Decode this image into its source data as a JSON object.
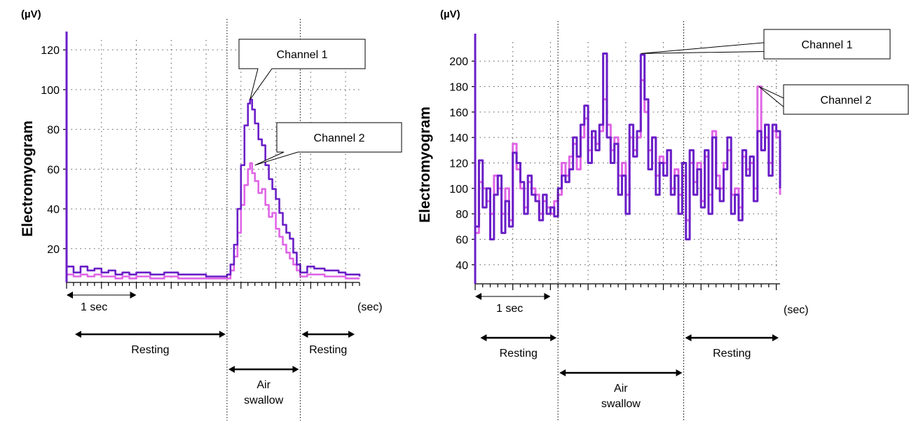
{
  "chart_data": [
    {
      "type": "line",
      "id": "left",
      "y_unit": "(µV)",
      "ylabel": "Electromyogram",
      "x_unit": "(sec)",
      "yticks": [
        "20",
        "40",
        "60",
        "80",
        "100",
        "120"
      ],
      "ylim": [
        3,
        125
      ],
      "xlim": [
        0,
        4.2
      ],
      "grid": true,
      "scale_bar": "1 sec",
      "scale_bar_range": [
        0,
        1
      ],
      "phase_dividers": [
        2.3,
        3.35
      ],
      "phases": [
        {
          "label": "Resting",
          "range": [
            0.1,
            2.3
          ]
        },
        {
          "label": "Air swallow",
          "range": [
            2.3,
            3.35
          ]
        },
        {
          "label": "Resting",
          "range": [
            3.35,
            4.15
          ]
        }
      ],
      "annotations": [
        {
          "text": "Channel 1",
          "series": 0,
          "at": [
            2.63,
            95
          ]
        },
        {
          "text": "Channel 2",
          "series": 1,
          "at": [
            2.7,
            62
          ]
        }
      ],
      "series": [
        {
          "name": "Channel 1",
          "color": "#6a1fc7",
          "x": [
            0,
            0.1,
            0.2,
            0.3,
            0.4,
            0.5,
            0.6,
            0.7,
            0.8,
            0.9,
            1.0,
            1.2,
            1.4,
            1.6,
            1.8,
            2.0,
            2.2,
            2.3,
            2.35,
            2.4,
            2.45,
            2.5,
            2.55,
            2.6,
            2.63,
            2.66,
            2.7,
            2.75,
            2.8,
            2.85,
            2.9,
            2.95,
            3.0,
            3.05,
            3.1,
            3.15,
            3.2,
            3.25,
            3.3,
            3.35,
            3.45,
            3.55,
            3.7,
            3.9,
            4.0,
            4.1,
            4.2
          ],
          "values": [
            11,
            8,
            11,
            9,
            10,
            8,
            9,
            7,
            8,
            7,
            8,
            7,
            8,
            7,
            7,
            6,
            6,
            7,
            12,
            22,
            40,
            62,
            82,
            93,
            95,
            90,
            83,
            75,
            72,
            62,
            55,
            50,
            45,
            38,
            32,
            28,
            25,
            18,
            12,
            8,
            11,
            10,
            9,
            8,
            7,
            7,
            6
          ]
        },
        {
          "name": "Channel 2",
          "color": "#e066e6",
          "x": [
            0,
            0.1,
            0.2,
            0.3,
            0.4,
            0.5,
            0.6,
            0.7,
            0.8,
            0.9,
            1.0,
            1.2,
            1.4,
            1.6,
            1.8,
            2.0,
            2.2,
            2.3,
            2.35,
            2.4,
            2.45,
            2.5,
            2.55,
            2.6,
            2.63,
            2.66,
            2.7,
            2.75,
            2.8,
            2.85,
            2.9,
            2.95,
            3.0,
            3.05,
            3.1,
            3.15,
            3.2,
            3.25,
            3.3,
            3.35,
            3.45,
            3.55,
            3.7,
            3.9,
            4.0,
            4.1,
            4.2
          ],
          "values": [
            7,
            6,
            7,
            6,
            7,
            6,
            6,
            5,
            6,
            5,
            6,
            5,
            6,
            5,
            5,
            5,
            5,
            5,
            9,
            16,
            28,
            42,
            52,
            60,
            63,
            58,
            54,
            48,
            50,
            42,
            36,
            38,
            30,
            26,
            22,
            18,
            15,
            12,
            9,
            6,
            7,
            7,
            6,
            6,
            5,
            5,
            5
          ]
        }
      ]
    },
    {
      "type": "line",
      "id": "right",
      "y_unit": "(µV)",
      "ylabel": "Electromyogram",
      "x_unit": "(sec)",
      "yticks": [
        "40",
        "60",
        "80",
        "100",
        "120",
        "140",
        "160",
        "180",
        "200"
      ],
      "ylim": [
        25,
        215
      ],
      "xlim": [
        0,
        4.05
      ],
      "grid": true,
      "scale_bar": "1 sec",
      "scale_bar_range": [
        0,
        1
      ],
      "phase_dividers": [
        1.1,
        2.77
      ],
      "phases": [
        {
          "label": "Resting",
          "range": [
            0.05,
            1.1
          ]
        },
        {
          "label": "Air swallow",
          "range": [
            1.1,
            2.77
          ]
        },
        {
          "label": "Resting",
          "range": [
            2.77,
            4.05
          ]
        }
      ],
      "annotations": [
        {
          "text": "Channel 1",
          "series": 0,
          "at": [
            2.2,
            206
          ]
        },
        {
          "text": "Channel 2",
          "series": 1,
          "at": [
            3.77,
            180
          ]
        }
      ],
      "series": [
        {
          "name": "Channel 1",
          "color": "#6a1fc7",
          "x": [
            0,
            0.05,
            0.1,
            0.15,
            0.2,
            0.25,
            0.3,
            0.35,
            0.4,
            0.45,
            0.5,
            0.55,
            0.6,
            0.65,
            0.7,
            0.75,
            0.8,
            0.85,
            0.9,
            0.95,
            1.0,
            1.05,
            1.1,
            1.15,
            1.2,
            1.25,
            1.3,
            1.35,
            1.4,
            1.45,
            1.5,
            1.55,
            1.6,
            1.65,
            1.7,
            1.75,
            1.8,
            1.85,
            1.9,
            1.95,
            2.0,
            2.05,
            2.1,
            2.15,
            2.2,
            2.25,
            2.3,
            2.35,
            2.4,
            2.45,
            2.5,
            2.55,
            2.6,
            2.65,
            2.7,
            2.75,
            2.8,
            2.85,
            2.9,
            2.95,
            3.0,
            3.05,
            3.1,
            3.15,
            3.2,
            3.25,
            3.3,
            3.35,
            3.4,
            3.45,
            3.5,
            3.55,
            3.6,
            3.65,
            3.7,
            3.75,
            3.8,
            3.85,
            3.9,
            3.95,
            4.0,
            4.05
          ],
          "values": [
            70,
            122,
            85,
            100,
            60,
            95,
            110,
            65,
            90,
            70,
            128,
            120,
            105,
            80,
            110,
            95,
            90,
            75,
            95,
            80,
            85,
            78,
            100,
            110,
            105,
            115,
            140,
            125,
            150,
            165,
            120,
            145,
            130,
            150,
            206,
            140,
            120,
            135,
            95,
            110,
            80,
            150,
            125,
            145,
            205,
            170,
            115,
            140,
            95,
            120,
            110,
            130,
            95,
            110,
            80,
            120,
            60,
            130,
            95,
            115,
            85,
            130,
            80,
            140,
            100,
            90,
            115,
            140,
            80,
            95,
            75,
            130,
            110,
            125,
            90,
            145,
            130,
            150,
            110,
            150,
            145,
            100
          ]
        },
        {
          "name": "Channel 2",
          "color": "#e066e6",
          "x": [
            0,
            0.05,
            0.1,
            0.15,
            0.2,
            0.25,
            0.3,
            0.35,
            0.4,
            0.45,
            0.5,
            0.55,
            0.6,
            0.65,
            0.7,
            0.75,
            0.8,
            0.85,
            0.9,
            0.95,
            1.0,
            1.05,
            1.1,
            1.15,
            1.2,
            1.25,
            1.3,
            1.35,
            1.4,
            1.45,
            1.5,
            1.55,
            1.6,
            1.65,
            1.7,
            1.75,
            1.8,
            1.85,
            1.9,
            1.95,
            2.0,
            2.05,
            2.1,
            2.15,
            2.2,
            2.25,
            2.3,
            2.35,
            2.4,
            2.45,
            2.5,
            2.55,
            2.6,
            2.65,
            2.7,
            2.75,
            2.8,
            2.85,
            2.9,
            2.95,
            3.0,
            3.05,
            3.1,
            3.15,
            3.2,
            3.25,
            3.3,
            3.35,
            3.4,
            3.45,
            3.5,
            3.55,
            3.6,
            3.65,
            3.7,
            3.75,
            3.8,
            3.85,
            3.9,
            3.95,
            4.0,
            4.05
          ],
          "values": [
            65,
            105,
            100,
            90,
            80,
            110,
            100,
            80,
            100,
            75,
            135,
            115,
            100,
            85,
            105,
            100,
            95,
            80,
            90,
            85,
            80,
            90,
            95,
            120,
            110,
            125,
            135,
            115,
            140,
            155,
            130,
            140,
            135,
            145,
            170,
            150,
            130,
            140,
            110,
            120,
            95,
            140,
            130,
            140,
            185,
            160,
            130,
            140,
            110,
            125,
            120,
            130,
            100,
            115,
            95,
            110,
            75,
            120,
            105,
            120,
            90,
            125,
            95,
            145,
            110,
            100,
            120,
            130,
            95,
            100,
            85,
            125,
            115,
            120,
            100,
            180,
            130,
            140,
            120,
            145,
            140,
            95
          ]
        }
      ]
    }
  ]
}
